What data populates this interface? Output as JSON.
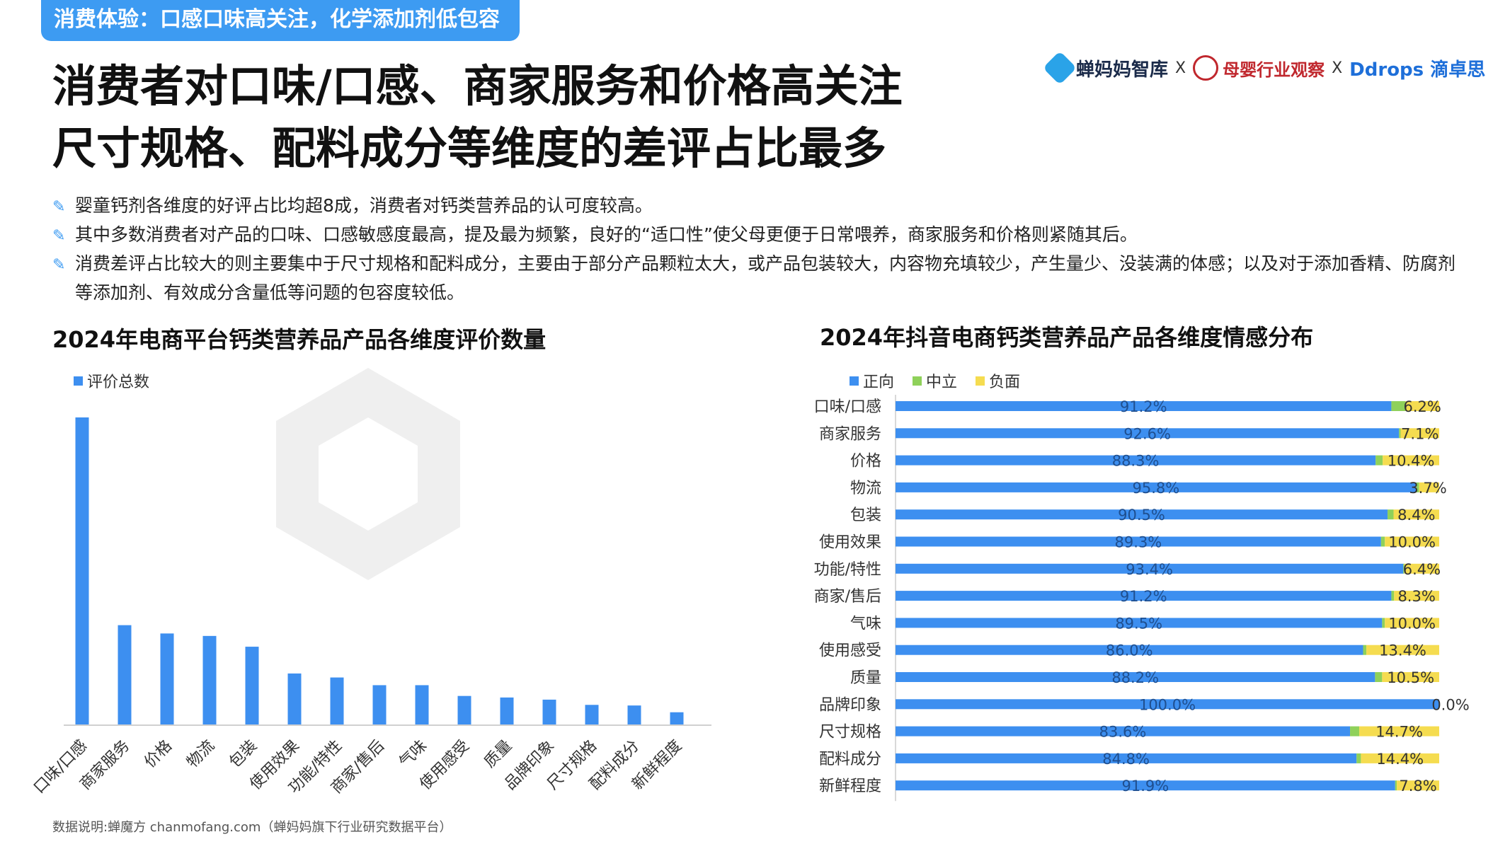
{
  "section_tag": "消费体验：口感口味高关注，化学添加剂低包容",
  "headline": {
    "line1": "消费者对口味/口感、商家服务和价格高关注",
    "line2": "尺寸规格、配料成分等维度的差评占比最多"
  },
  "logos": {
    "logo1": "蝉妈妈智库",
    "logo2": "母婴行业观察",
    "logo3": "Ddrops 滴卓思",
    "separator": "X"
  },
  "bullets": [
    "婴童钙剂各维度的好评占比均超8成，消费者对钙类营养品的认可度较高。",
    "其中多数消费者对产品的口味、口感敏感度最高，提及最为频繁，良好的“适口性”使父母更便于日常喂养，商家服务和价格则紧随其后。",
    "消费差评占比较大的则主要集中于尺寸规格和配料成分，主要由于部分产品颗粒太大，或产品包装较大，内容物充填较少，产生量少、没装满的体感；以及对于添加香精、防腐剂等添加剂、有效成分含量低等问题的包容度较低。"
  ],
  "footnote": "数据说明:蝉魔方 chanmofang.com（蝉妈妈旗下行业研究数据平台）",
  "colors": {
    "brand": "#3d9bf2",
    "bar_blue": "#3d8ff0",
    "neutral_green": "#8fd15a",
    "negative_yellow": "#f5dc50"
  },
  "chart_data": [
    {
      "type": "bar",
      "title": "2024年电商平台钙类营养品产品各维度评价数量",
      "legend": [
        "评价总数"
      ],
      "categories": [
        "口味/口感",
        "商家服务",
        "价格",
        "物流",
        "包装",
        "使用效果",
        "功能/特性",
        "商家/售后",
        "气味",
        "使用感受",
        "质量",
        "品牌印象",
        "尺寸规格",
        "配料成分",
        "新鲜程度"
      ],
      "values": [
        100,
        32.5,
        29.8,
        29.0,
        25.5,
        16.8,
        15.5,
        13.0,
        13.0,
        9.5,
        9.0,
        8.3,
        6.6,
        6.4,
        4.2
      ],
      "xlabel": "",
      "ylabel": "",
      "ylim": [
        0,
        100
      ],
      "note": "relative values estimated; no y-axis shown"
    },
    {
      "type": "bar",
      "orientation": "horizontal-stacked-100",
      "title": "2024年抖音电商钙类营养品产品各维度情感分布",
      "legend": [
        "正向",
        "中立",
        "负面"
      ],
      "categories": [
        "口味/口感",
        "商家服务",
        "价格",
        "物流",
        "包装",
        "使用效果",
        "功能/特性",
        "商家/售后",
        "气味",
        "使用感受",
        "质量",
        "品牌印象",
        "尺寸规格",
        "配料成分",
        "新鲜程度"
      ],
      "series": [
        {
          "name": "正向",
          "values": [
            91.2,
            92.6,
            88.3,
            95.8,
            90.5,
            89.3,
            93.4,
            91.2,
            89.5,
            86.0,
            88.2,
            100.0,
            83.6,
            84.8,
            91.9
          ]
        },
        {
          "name": "中立",
          "values": [
            2.6,
            0.3,
            1.3,
            0.5,
            1.1,
            0.7,
            0.2,
            0.5,
            0.5,
            0.6,
            1.3,
            0.0,
            1.7,
            0.8,
            0.3
          ]
        },
        {
          "name": "负面",
          "values": [
            6.2,
            7.1,
            10.4,
            3.7,
            8.4,
            10.0,
            6.4,
            8.3,
            10.0,
            13.4,
            10.5,
            0.0,
            14.7,
            14.4,
            7.8
          ]
        }
      ],
      "positive_labels": [
        "91.2%",
        "92.6%",
        "88.3%",
        "95.8%",
        "90.5%",
        "89.3%",
        "93.4%",
        "91.2%",
        "89.5%",
        "86.0%",
        "88.2%",
        "100.0%",
        "83.6%",
        "84.8%",
        "91.9%"
      ],
      "negative_labels": [
        "6.2%",
        "7.1%",
        "10.4%",
        "3.7%",
        "8.4%",
        "10.0%",
        "6.4%",
        "8.3%",
        "10.0%",
        "13.4%",
        "10.5%",
        "0.0%",
        "14.7%",
        "14.4%",
        "7.8%"
      ],
      "xlim": [
        0,
        100
      ]
    }
  ]
}
